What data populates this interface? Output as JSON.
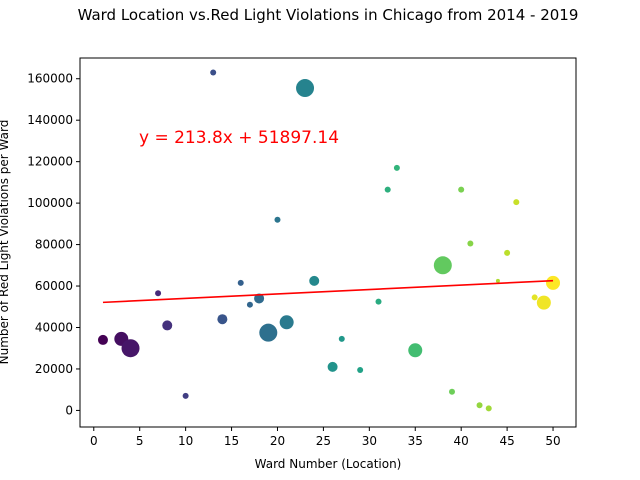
{
  "chart_data": {
    "type": "scatter",
    "title": "Ward Location vs.Red Light Violations in Chicago from 2014 - 2019",
    "xlabel": "Ward Number (Location)",
    "ylabel": "Number of Red Light Violations per Ward",
    "xlim": [
      -1.5,
      52.5
    ],
    "ylim": [
      -8000,
      170000
    ],
    "xticks": [
      "0",
      "5",
      "10",
      "15",
      "20",
      "25",
      "30",
      "35",
      "40",
      "45",
      "50"
    ],
    "yticks": [
      "0",
      "20000",
      "40000",
      "60000",
      "80000",
      "100000",
      "120000",
      "140000",
      "160000"
    ],
    "grid": false,
    "colormap": "viridis",
    "annotation": "y = 213.8x + 51897.14",
    "annotation_color": "#ff0000",
    "regression": {
      "slope": 213.8,
      "intercept": 51897.14,
      "x_range": [
        1,
        50
      ],
      "color": "#ff0000"
    },
    "points": [
      {
        "x": 1,
        "y": 34000,
        "size": 5
      },
      {
        "x": 3,
        "y": 34500,
        "size": 7
      },
      {
        "x": 4,
        "y": 30000,
        "size": 9
      },
      {
        "x": 7,
        "y": 56500,
        "size": 3
      },
      {
        "x": 8,
        "y": 41000,
        "size": 5
      },
      {
        "x": 10,
        "y": 7000,
        "size": 3
      },
      {
        "x": 13,
        "y": 163000,
        "size": 3
      },
      {
        "x": 14,
        "y": 44000,
        "size": 5
      },
      {
        "x": 16,
        "y": 61500,
        "size": 3
      },
      {
        "x": 17,
        "y": 51000,
        "size": 3
      },
      {
        "x": 18,
        "y": 54000,
        "size": 5
      },
      {
        "x": 19,
        "y": 37500,
        "size": 9
      },
      {
        "x": 20,
        "y": 92000,
        "size": 3
      },
      {
        "x": 21,
        "y": 42500,
        "size": 7
      },
      {
        "x": 23,
        "y": 155500,
        "size": 9
      },
      {
        "x": 24,
        "y": 62500,
        "size": 5
      },
      {
        "x": 26,
        "y": 21000,
        "size": 5
      },
      {
        "x": 27,
        "y": 34500,
        "size": 3
      },
      {
        "x": 29,
        "y": 19500,
        "size": 3
      },
      {
        "x": 31,
        "y": 52500,
        "size": 3
      },
      {
        "x": 32,
        "y": 106500,
        "size": 3
      },
      {
        "x": 33,
        "y": 117000,
        "size": 3
      },
      {
        "x": 35,
        "y": 29000,
        "size": 7
      },
      {
        "x": 38,
        "y": 70000,
        "size": 9
      },
      {
        "x": 39,
        "y": 9000,
        "size": 3
      },
      {
        "x": 40,
        "y": 106500,
        "size": 3
      },
      {
        "x": 41,
        "y": 80500,
        "size": 3
      },
      {
        "x": 42,
        "y": 2500,
        "size": 3
      },
      {
        "x": 43,
        "y": 1000,
        "size": 3
      },
      {
        "x": 44,
        "y": 62500,
        "size": 2
      },
      {
        "x": 45,
        "y": 76000,
        "size": 3
      },
      {
        "x": 46,
        "y": 100500,
        "size": 3
      },
      {
        "x": 48,
        "y": 54500,
        "size": 3
      },
      {
        "x": 49,
        "y": 52000,
        "size": 7
      },
      {
        "x": 50,
        "y": 61500,
        "size": 7
      }
    ]
  }
}
